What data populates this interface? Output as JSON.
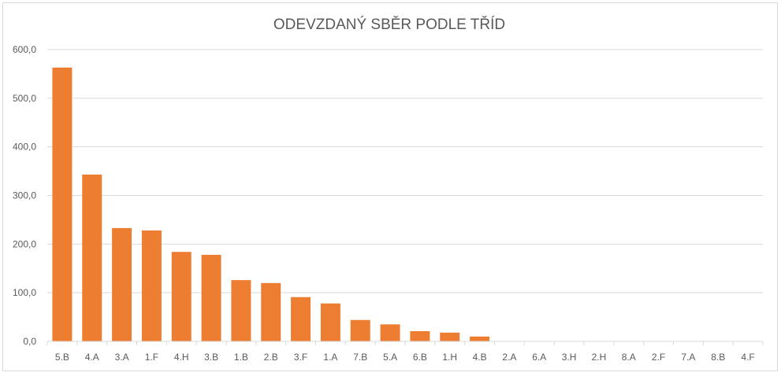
{
  "chart_data": {
    "type": "bar",
    "title": "ODEVZDANÝ SBĚR PODLE TŘÍD",
    "xlabel": "",
    "ylabel": "",
    "ylim": [
      0,
      600
    ],
    "yticks": [
      "0,0",
      "100,0",
      "200,0",
      "300,0",
      "400,0",
      "500,0",
      "600,0"
    ],
    "grid": true,
    "legend": "none",
    "bar_color": "#ED7D31",
    "categories": [
      "5.B",
      "4.A",
      "3.A",
      "1.F",
      "4.H",
      "3.B",
      "1.B",
      "2.B",
      "3.F",
      "1.A",
      "7.B",
      "5.A",
      "6.B",
      "1.H",
      "4.B",
      "2.A",
      "6.A",
      "3.H",
      "2.H",
      "8.A",
      "2.F",
      "7.A",
      "8.B",
      "4.F"
    ],
    "values": [
      563,
      343,
      233,
      228,
      184,
      178,
      126,
      120,
      91,
      78,
      44,
      35,
      21,
      18,
      10,
      0,
      0,
      0,
      0,
      0,
      0,
      0,
      0,
      0
    ]
  }
}
